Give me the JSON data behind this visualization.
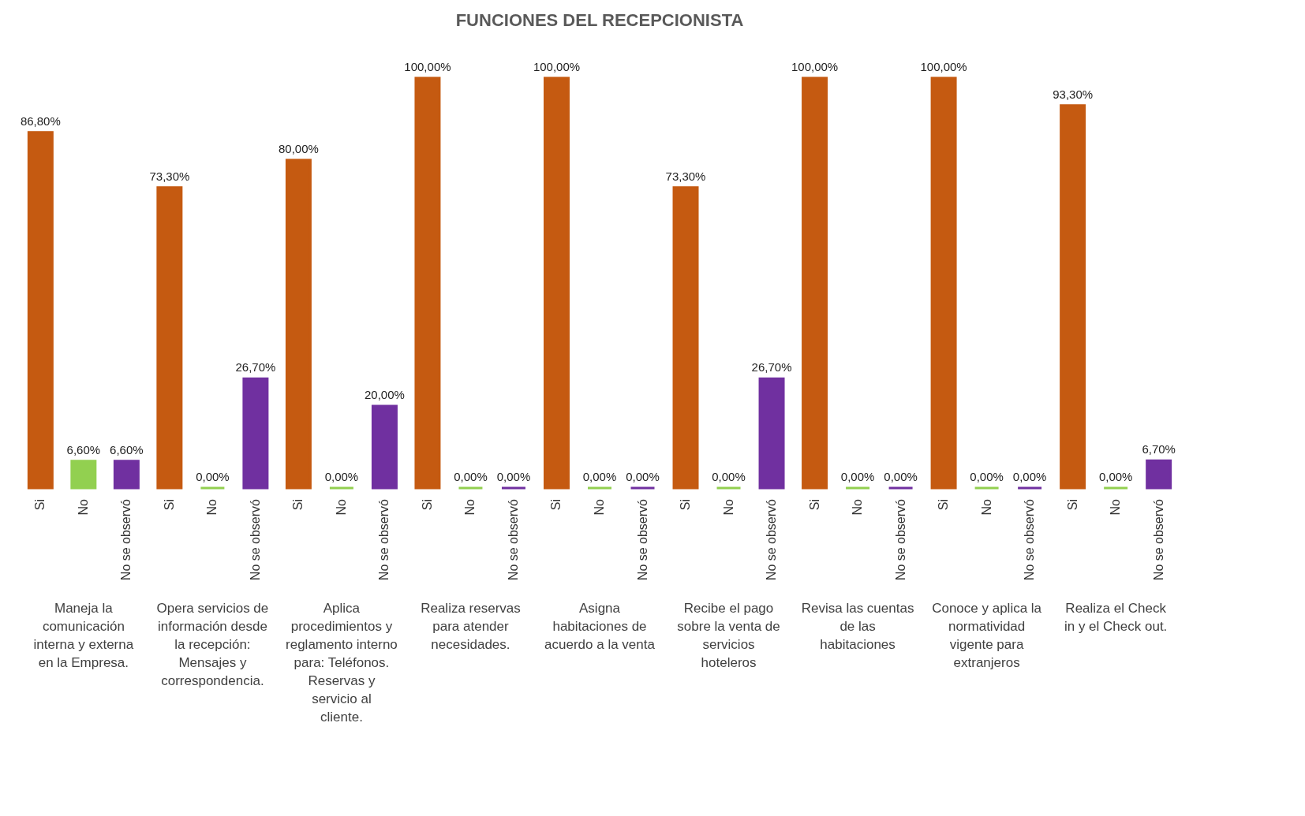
{
  "chart_data": {
    "type": "bar",
    "title": "FUNCIONES DEL RECEPCIONISTA",
    "categories": [
      "Maneja la comunicación interna y externa en la Empresa.",
      "Opera servicios de información desde la recepción: Mensajes y correspondencia.",
      "Aplica procedimientos y reglamento interno para: Teléfonos. Reservas y servicio al cliente.",
      "Realiza reservas para atender necesidades.",
      "Asigna habitaciones de acuerdo a la venta",
      "Recibe el pago sobre la venta de servicios hoteleros",
      "Revisa las cuentas de las habitaciones",
      "Conoce y aplica la normatividad vigente para extranjeros",
      "Realiza el Check in y el Check out."
    ],
    "series": [
      {
        "name": "Si",
        "color": "#c55a11",
        "values": [
          86.8,
          73.3,
          80,
          100,
          100,
          73.3,
          100,
          100,
          93.3
        ],
        "value_labels": [
          "86,80%",
          "73,30%",
          "80,00%",
          "100,00%",
          "100,00%",
          "73,30%",
          "100,00%",
          "100,00%",
          "93,30%"
        ]
      },
      {
        "name": "No",
        "color": "#92d050",
        "values": [
          6.6,
          0,
          0,
          0,
          0,
          0,
          0,
          0,
          0
        ],
        "value_labels": [
          "6,60%",
          "0,00%",
          "0,00%",
          "0,00%",
          "0,00%",
          "0,00%",
          "0,00%",
          "0,00%",
          "0,00%"
        ]
      },
      {
        "name": "No se observó",
        "color": "#7030a0",
        "values": [
          6.6,
          26.7,
          20,
          0,
          0,
          26.7,
          0,
          0,
          6.7
        ],
        "value_labels": [
          "6,60%",
          "26,70%",
          "20,00%",
          "0,00%",
          "0,00%",
          "26,70%",
          "0,00%",
          "0,00%",
          "6,70%"
        ]
      }
    ]
  }
}
